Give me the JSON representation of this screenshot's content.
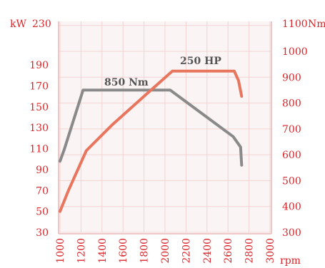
{
  "chart_data": {
    "type": "line",
    "x_tick_labels": [
      "1000",
      "1200",
      "1400",
      "1600",
      "1800",
      "2000",
      "2200",
      "2400",
      "2600",
      "2800",
      "3000"
    ],
    "x_unit": "rpm",
    "xlim": [
      1000,
      3000
    ],
    "y_left": {
      "unit": "kW",
      "top_label": "230",
      "tick_labels": [
        "190",
        "170",
        "150",
        "130",
        "110",
        "90",
        "70",
        "50",
        "30"
      ],
      "ylim": [
        30,
        230
      ]
    },
    "y_right": {
      "unit": "Nm",
      "top_label": "1100",
      "tick_labels": [
        "1000",
        "900",
        "800",
        "700",
        "600",
        "500",
        "400",
        "300"
      ],
      "ylim": [
        300,
        1100
      ]
    },
    "series": [
      {
        "name": "850 Nm",
        "axis": "right",
        "color": "#8a8a8a",
        "x": [
          1000,
          1040,
          1220,
          2050,
          2350,
          2650,
          2720,
          2730
        ],
        "y": [
          575,
          620,
          850,
          850,
          760,
          670,
          630,
          560
        ]
      },
      {
        "name": "250 HP",
        "axis": "left",
        "color": "#e8765f",
        "x": [
          1000,
          1080,
          1250,
          1500,
          1800,
          2070,
          2200,
          2400,
          2660,
          2700,
          2730
        ],
        "y": [
          50,
          70,
          108,
          133,
          160,
          184,
          184,
          184,
          184,
          175,
          160
        ]
      }
    ],
    "annotations": [
      "850 Nm",
      "250 HP"
    ],
    "grid": true,
    "colors": {
      "left_axis": "#d9262b",
      "right_axis": "#d9262b",
      "grid": "#f3d3d3",
      "torque": "#8a8a8a",
      "power": "#e8765f"
    }
  }
}
